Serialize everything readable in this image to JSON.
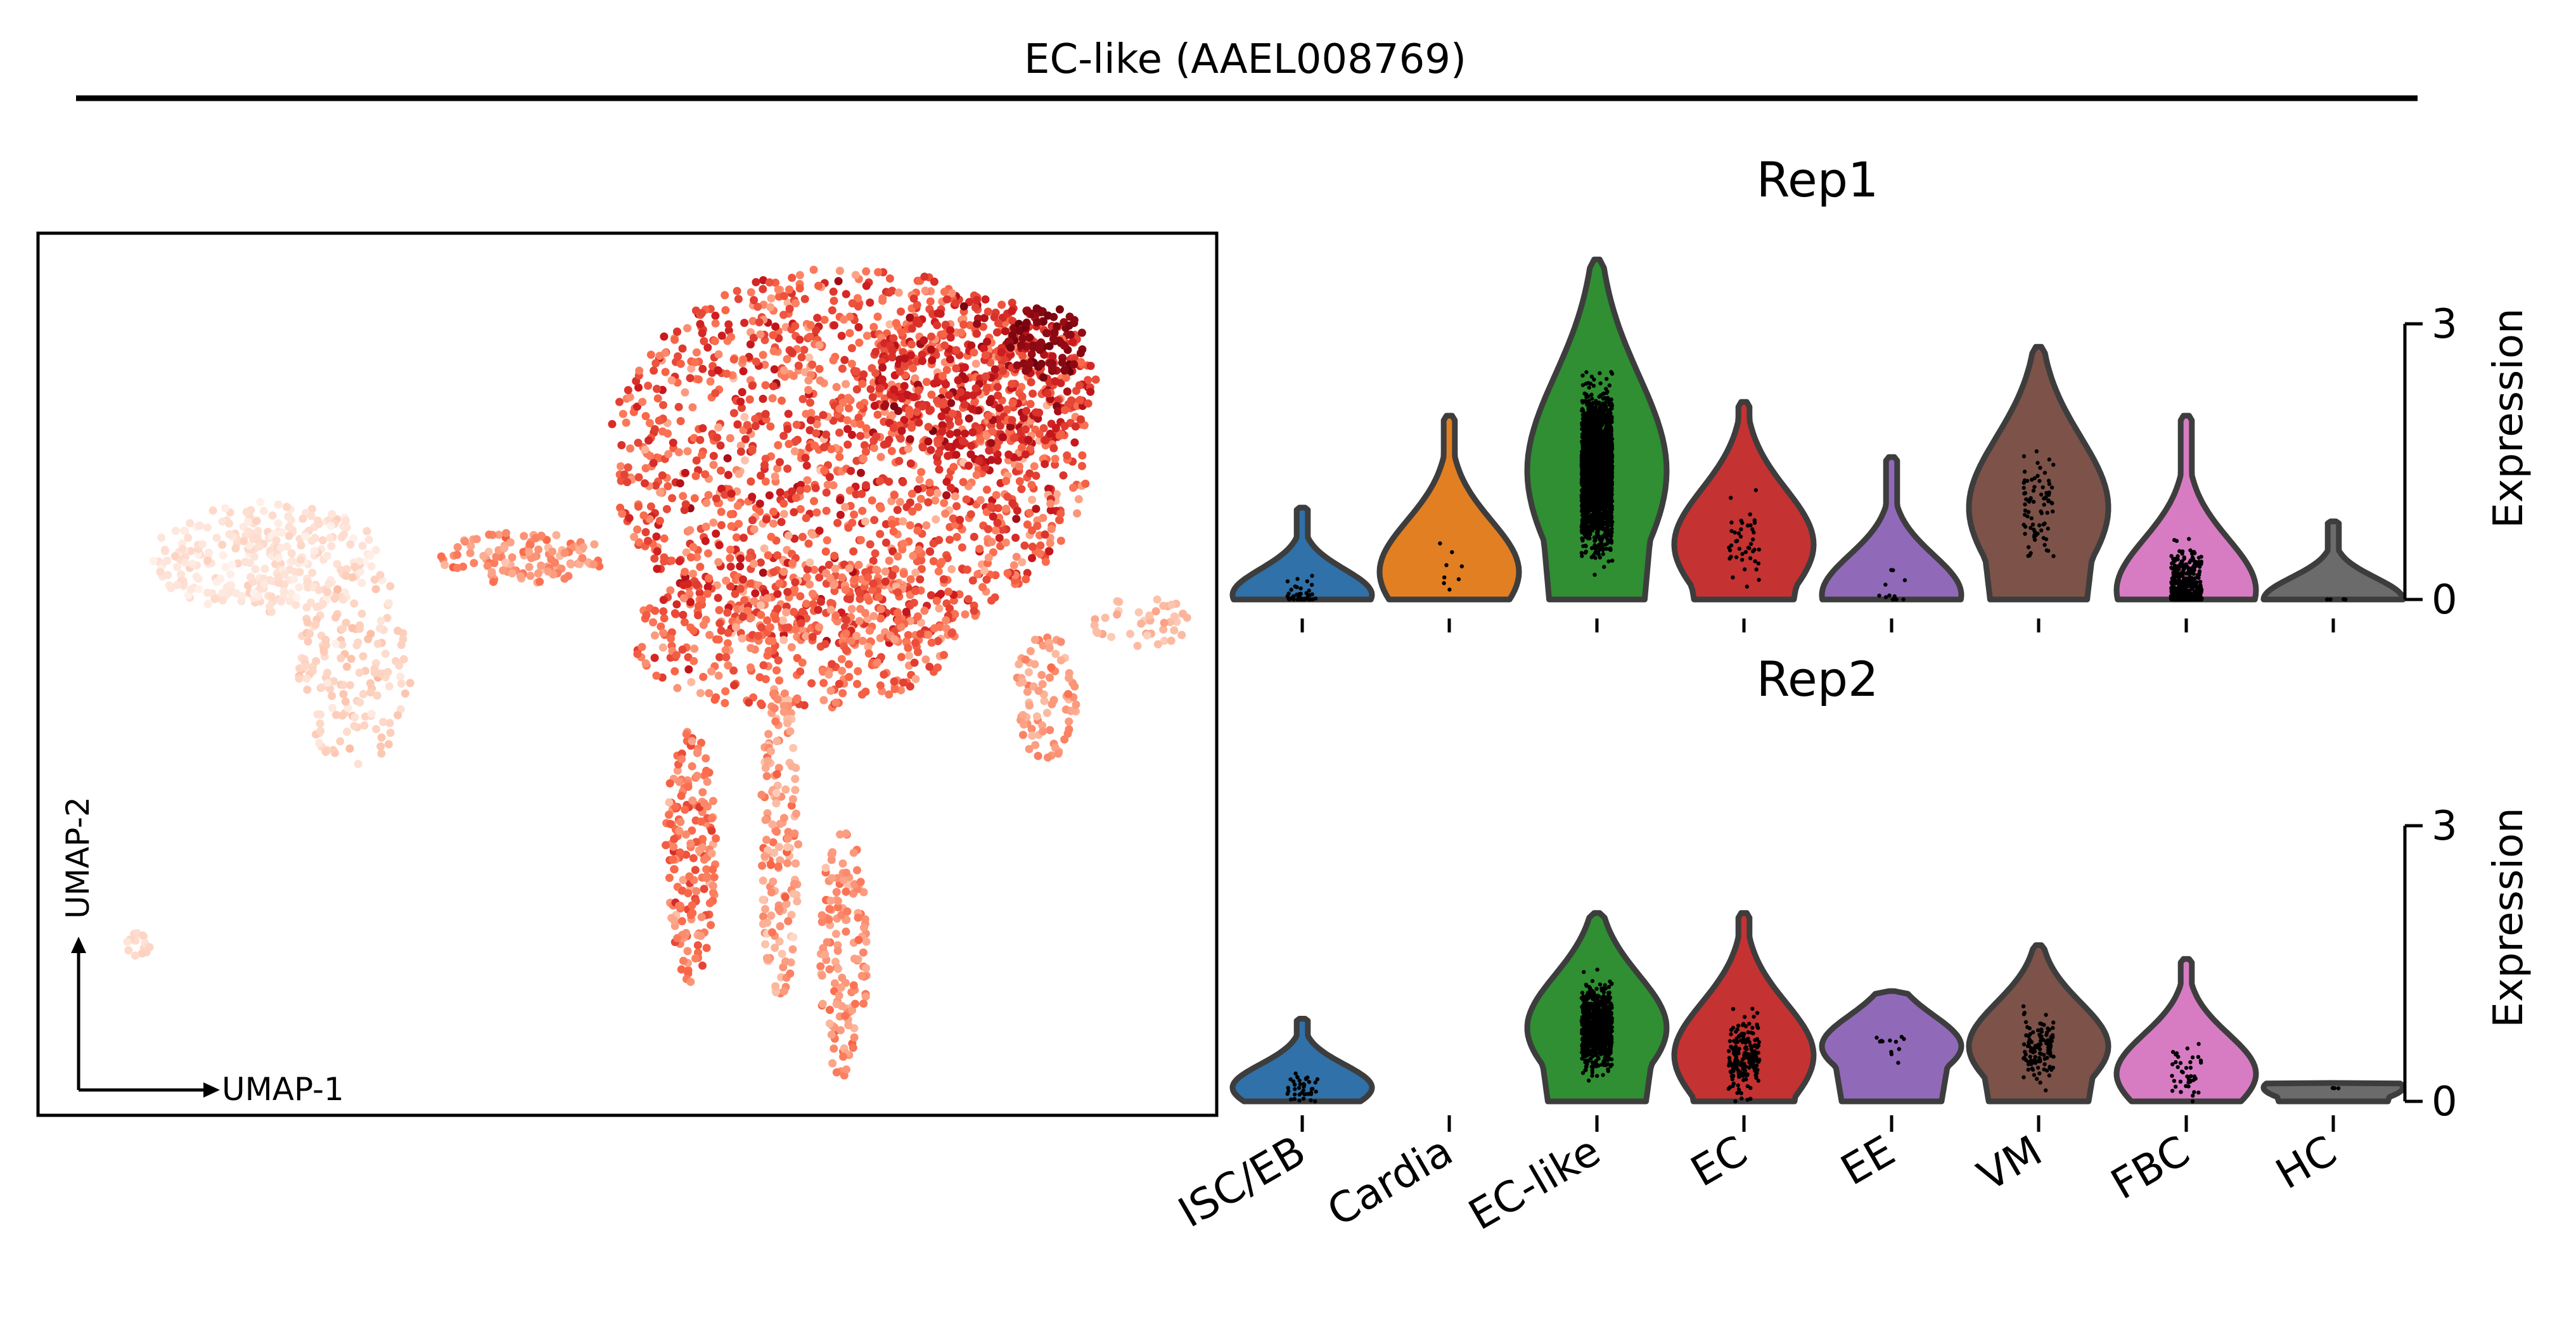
{
  "figure": {
    "title": "EC-like (AAEL008769)"
  },
  "umap": {
    "xlabel": "UMAP-1",
    "ylabel": "UMAP-2",
    "colormap": "Reds"
  },
  "colors": {
    "ISC/EB": "#2f71a8",
    "Cardia": "#e27f22",
    "EC-like": "#2f8f32",
    "EC": "#c43232",
    "EE": "#9169b9",
    "VM": "#7c5249",
    "FBC": "#d77cc3",
    "HC": "#6b6b6b",
    "outline": "#3d3d3d"
  },
  "chart_data": [
    {
      "type": "scatter",
      "title": "",
      "xlabel": "UMAP-1",
      "ylabel": "UMAP-2",
      "color_scale": "Reds",
      "description_of_values": "per-cell expression of AAEL008769 (low = pale, high = dark red)"
    },
    {
      "type": "violin",
      "title": "Rep1",
      "ylabel": "Expression",
      "ylim": [
        0,
        3.9
      ],
      "yticks": [
        0,
        3
      ],
      "categories": [
        "ISC/EB",
        "Cardia",
        "EC-like",
        "EC",
        "EE",
        "VM",
        "FBC",
        "HC"
      ],
      "max": [
        1.0,
        2.0,
        3.7,
        2.15,
        1.55,
        2.75,
        2.0,
        0.85
      ],
      "median": [
        0.05,
        0.3,
        1.4,
        0.6,
        0.05,
        1.0,
        0.1,
        0.0
      ],
      "points": [
        40,
        8,
        2400,
        45,
        12,
        80,
        400,
        5
      ]
    },
    {
      "type": "violin",
      "title": "Rep2",
      "ylabel": "Expression",
      "ylim": [
        0,
        3.9
      ],
      "yticks": [
        0,
        3
      ],
      "categories": [
        "ISC/EB",
        "Cardia",
        "EC-like",
        "EC",
        "EE",
        "VM",
        "FBC",
        "HC"
      ],
      "max": [
        0.9,
        null,
        2.05,
        2.05,
        1.2,
        1.7,
        1.55,
        0.2
      ],
      "median": [
        0.15,
        null,
        0.8,
        0.5,
        0.6,
        0.6,
        0.3,
        0.15
      ],
      "points": [
        40,
        0,
        900,
        200,
        12,
        120,
        40,
        3
      ]
    }
  ]
}
